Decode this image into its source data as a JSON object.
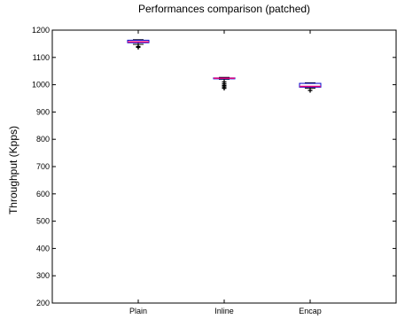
{
  "chart_data": {
    "type": "box",
    "title": "Performances comparison (patched)",
    "xlabel": "",
    "ylabel": "Throughput (Kpps)",
    "ylim": [
      200,
      1200
    ],
    "yticks": [
      200,
      300,
      400,
      500,
      600,
      700,
      800,
      900,
      1000,
      1100,
      1200
    ],
    "grid": false,
    "categories": [
      "Plain",
      "Inline",
      "Encap"
    ],
    "boxes": [
      {
        "category": "Plain",
        "whisker_low": 1148,
        "q1": 1154,
        "median": 1157,
        "q3": 1163,
        "whisker_high": 1165,
        "outliers": [
          1140,
          1137
        ]
      },
      {
        "category": "Inline",
        "whisker_low": 1020,
        "q1": 1022,
        "median": 1024,
        "q3": 1025,
        "whisker_high": 1027,
        "outliers": [
          1010,
          1003,
          997,
          992,
          987
        ]
      },
      {
        "category": "Encap",
        "whisker_low": 987,
        "q1": 991,
        "median": 994,
        "q3": 1005,
        "whisker_high": 1007,
        "outliers": [
          979
        ]
      }
    ],
    "colors": {
      "box": "#0000cc",
      "median": "#e0007a",
      "whisker": "#000000",
      "outlier": "#000000"
    }
  }
}
